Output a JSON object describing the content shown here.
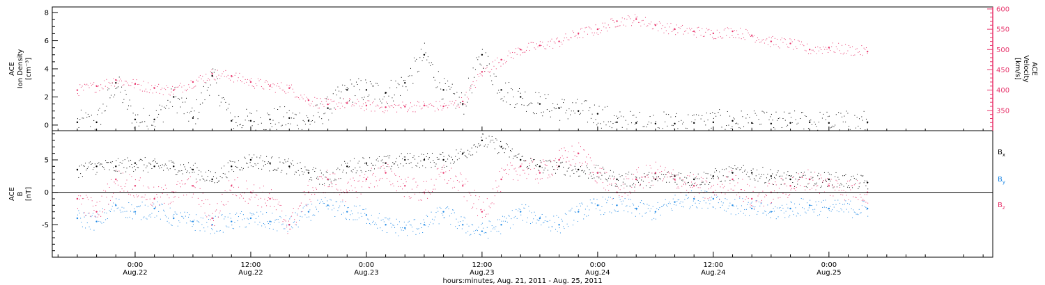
{
  "chart_data": [
    {
      "type": "scatter",
      "panel": "top",
      "ylabel_left": [
        "ACE",
        "Ion Density",
        "[cm⁻³]"
      ],
      "ylabel_right": [
        "ACE",
        "Velocity",
        "[km/s]"
      ],
      "ylim_left": [
        -0.4,
        8.4
      ],
      "ylim_right": [
        300,
        605
      ],
      "yticks_left": [
        "0",
        "2",
        "4",
        "6",
        "8"
      ],
      "yticks_right": [
        "350",
        "400",
        "450",
        "500",
        "550",
        "600"
      ],
      "grid": false,
      "series": [
        {
          "color": "#000000",
          "axis": "left",
          "x_hours": [
            -6,
            -4,
            -2,
            0,
            2,
            4,
            6,
            8,
            10,
            12,
            14,
            16,
            18,
            20,
            22,
            24,
            26,
            28,
            30,
            32,
            34,
            36,
            38,
            40,
            42,
            44,
            46,
            48,
            50,
            52,
            54,
            56,
            58,
            60,
            62,
            64,
            66,
            68,
            70,
            72,
            76
          ],
          "y": [
            0.2,
            0.2,
            3.0,
            0.4,
            0.4,
            2.0,
            0.5,
            3.5,
            0.3,
            0.3,
            0.4,
            0.5,
            0.3,
            1.2,
            2.5,
            2.5,
            2.3,
            3.0,
            5.0,
            2.5,
            1.5,
            5.0,
            2.5,
            2.0,
            1.5,
            1.2,
            1.0,
            0.8,
            0.2,
            0.15,
            0.1,
            0.1,
            0.15,
            0.2,
            0.3,
            0.15,
            0.1,
            0.15,
            0.2,
            0.15,
            0.2
          ]
        },
        {
          "color": "#e8336b",
          "axis": "right",
          "x_hours": [
            -6,
            -4,
            -2,
            0,
            2,
            4,
            6,
            8,
            10,
            12,
            14,
            16,
            18,
            20,
            22,
            24,
            26,
            28,
            30,
            32,
            34,
            36,
            38,
            40,
            42,
            44,
            46,
            48,
            50,
            52,
            54,
            56,
            58,
            60,
            62,
            64,
            66,
            68,
            70,
            72,
            76
          ],
          "y": [
            400,
            410,
            425,
            415,
            405,
            400,
            420,
            440,
            435,
            420,
            410,
            405,
            375,
            365,
            368,
            362,
            358,
            360,
            362,
            360,
            372,
            445,
            475,
            500,
            510,
            520,
            540,
            550,
            570,
            575,
            560,
            550,
            545,
            540,
            545,
            535,
            520,
            515,
            500,
            505,
            495
          ]
        }
      ]
    },
    {
      "type": "scatter",
      "panel": "bottom",
      "ylabel_left": [
        "ACE",
        "B",
        "[nT]"
      ],
      "ylim": [
        -10,
        9.5
      ],
      "yticks_left": [
        "-5",
        "0",
        "5"
      ],
      "grid": false,
      "reference_line": 0,
      "legend": [
        "Bx",
        "By",
        "Bz"
      ],
      "legend_position": "right",
      "series": [
        {
          "name": "Bx",
          "color": "#000000",
          "x_hours": [
            -6,
            -4,
            -2,
            0,
            2,
            4,
            6,
            8,
            10,
            12,
            14,
            16,
            18,
            20,
            22,
            24,
            26,
            28,
            30,
            32,
            34,
            36,
            38,
            40,
            42,
            44,
            46,
            48,
            50,
            52,
            54,
            56,
            58,
            60,
            62,
            64,
            66,
            68,
            70,
            72,
            76
          ],
          "y": [
            3.5,
            4,
            4,
            4.5,
            4,
            4,
            3.5,
            2,
            4,
            5,
            4.5,
            4,
            3,
            2,
            4,
            4.5,
            4.5,
            5,
            5,
            5,
            6,
            8,
            7,
            5,
            4,
            4,
            3.5,
            3,
            2,
            2,
            2,
            2.5,
            2,
            2.5,
            3,
            3,
            2.5,
            2,
            2,
            2,
            1.5
          ]
        },
        {
          "name": "By",
          "color": "#1e88e5",
          "x_hours": [
            -6,
            -4,
            -2,
            0,
            2,
            4,
            6,
            8,
            10,
            12,
            14,
            16,
            18,
            20,
            22,
            24,
            26,
            28,
            30,
            32,
            34,
            36,
            38,
            40,
            42,
            44,
            46,
            48,
            50,
            52,
            54,
            56,
            58,
            60,
            62,
            64,
            66,
            68,
            70,
            72,
            76
          ],
          "y": [
            -4,
            -4.5,
            -2,
            -3,
            -2.5,
            -4,
            -4.5,
            -5,
            -4.5,
            -4,
            -4.5,
            -5,
            -3,
            -2,
            -3,
            -3.5,
            -5,
            -5.5,
            -5,
            -3,
            -5,
            -6,
            -5,
            -3,
            -4,
            -5,
            -3,
            -2,
            -2,
            -2.5,
            -3,
            -1.5,
            -1,
            -1,
            -2,
            -2.5,
            -3,
            -2.5,
            -2,
            -2.5,
            -2.5
          ]
        },
        {
          "name": "Bz",
          "color": "#e8336b",
          "x_hours": [
            -6,
            -4,
            -2,
            0,
            2,
            4,
            6,
            8,
            10,
            12,
            14,
            16,
            18,
            20,
            22,
            24,
            26,
            28,
            30,
            32,
            34,
            36,
            38,
            40,
            42,
            44,
            46,
            48,
            50,
            52,
            54,
            56,
            58,
            60,
            62,
            64,
            66,
            68,
            70,
            72,
            76
          ],
          "y": [
            -1,
            -3,
            2,
            1,
            -1,
            0,
            1,
            -4,
            1,
            0,
            -1,
            -5,
            0,
            2,
            0,
            2,
            3,
            1,
            0,
            3,
            1,
            -3,
            2,
            4,
            3,
            5,
            6,
            3,
            0,
            2,
            3,
            2,
            1,
            0,
            2,
            -1,
            0,
            1,
            2,
            1,
            0
          ]
        }
      ]
    }
  ],
  "x_axis": {
    "ticks": [
      {
        "time": "0:00",
        "date": "Aug.22"
      },
      {
        "time": "12:00",
        "date": "Aug.22"
      },
      {
        "time": "0:00",
        "date": "Aug.23"
      },
      {
        "time": "12:00",
        "date": "Aug.23"
      },
      {
        "time": "0:00",
        "date": "Aug.24"
      },
      {
        "time": "12:00",
        "date": "Aug.24"
      },
      {
        "time": "0:00",
        "date": "Aug.25"
      }
    ],
    "xlim_hours": [
      -8.6,
      89
    ],
    "label": "hours:minutes, Aug. 21, 2011 - Aug. 25, 2011"
  },
  "legend_labels": {
    "bx": "B",
    "bx_sub": "x",
    "by": "B",
    "by_sub": "y",
    "bz": "B",
    "bz_sub": "z"
  },
  "colors": {
    "density": "#000000",
    "velocity": "#e8336b",
    "bx": "#000000",
    "by": "#1e88e5",
    "bz": "#e8336b"
  }
}
